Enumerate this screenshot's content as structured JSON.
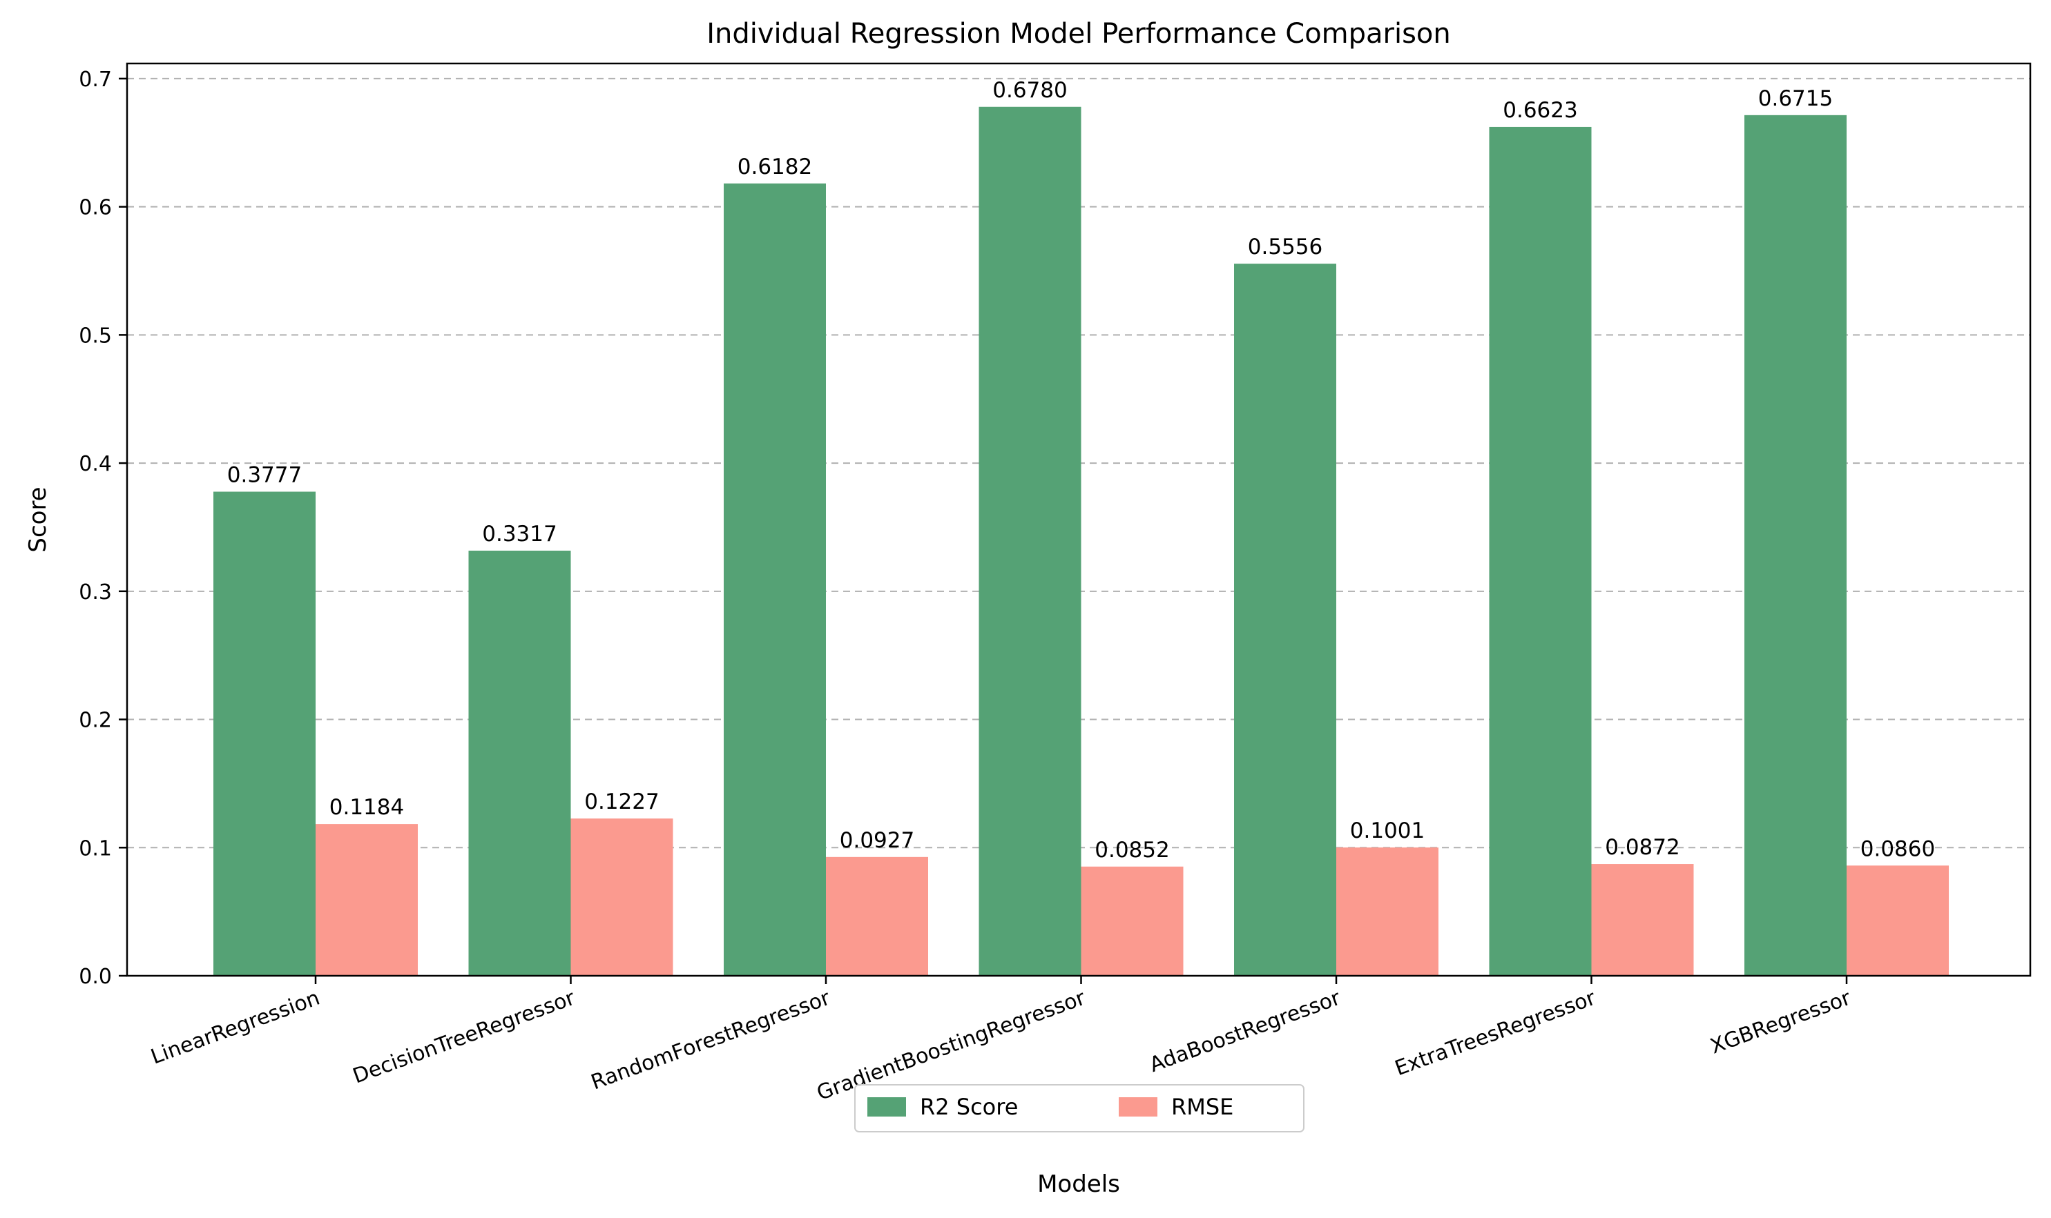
{
  "chart_data": {
    "type": "bar",
    "title": "Individual Regression Model Performance Comparison",
    "xlabel": "Models",
    "ylabel": "Score",
    "categories": [
      "LinearRegression",
      "DecisionTreeRegressor",
      "RandomForestRegressor",
      "GradientBoostingRegressor",
      "AdaBoostRegressor",
      "ExtraTreesRegressor",
      "XGBRegressor"
    ],
    "series": [
      {
        "name": "R2 Score",
        "color": "#55a275",
        "values": [
          0.3777,
          0.3317,
          0.6182,
          0.678,
          0.5556,
          0.6623,
          0.6715
        ],
        "labels": [
          "0.3777",
          "0.3317",
          "0.6182",
          "0.6780",
          "0.5556",
          "0.6623",
          "0.6715"
        ]
      },
      {
        "name": "RMSE",
        "color": "#fb9a8f",
        "values": [
          0.1184,
          0.1227,
          0.0927,
          0.0852,
          0.1001,
          0.0872,
          0.086
        ],
        "labels": [
          "0.1184",
          "0.1227",
          "0.0927",
          "0.0852",
          "0.1001",
          "0.0872",
          "0.0860"
        ]
      }
    ],
    "ylim": [
      0,
      0.7118
    ],
    "yticks": [
      0.0,
      0.1,
      0.2,
      0.3,
      0.4,
      0.5,
      0.6,
      0.7
    ],
    "ytick_labels": [
      "0.0",
      "0.1",
      "0.2",
      "0.3",
      "0.4",
      "0.5",
      "0.6",
      "0.7"
    ],
    "grid": "y-dashed",
    "legend_position": "bottom-center",
    "xtick_rotation": "20"
  }
}
